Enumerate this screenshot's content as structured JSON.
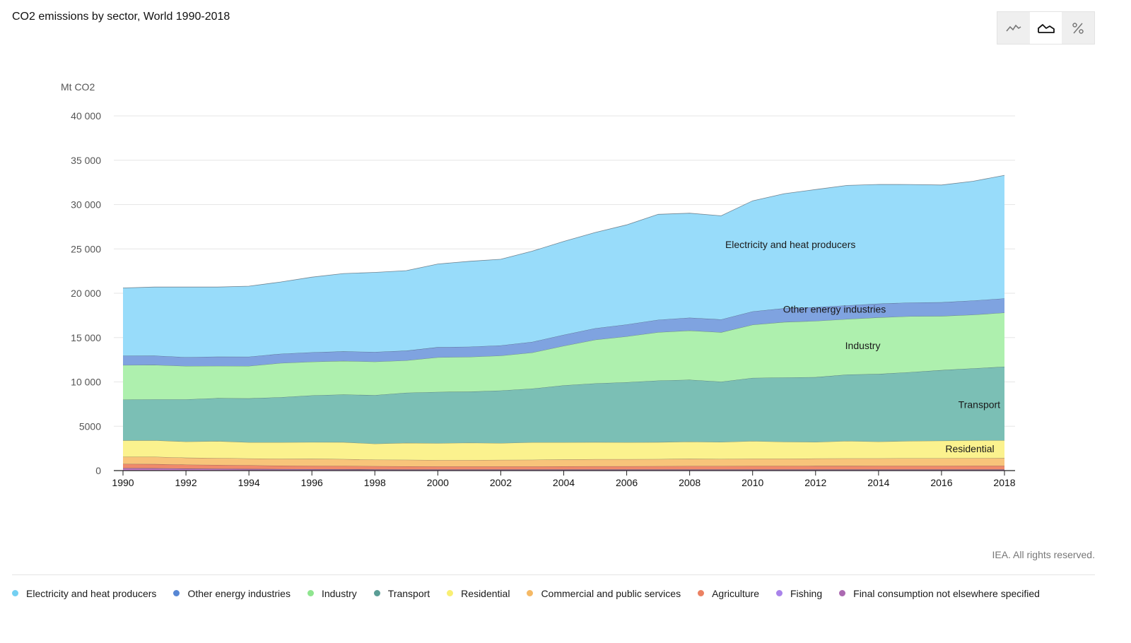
{
  "title": "CO2 emissions by sector, World 1990-2018",
  "toolbar": {
    "buttons": [
      {
        "name": "line-chart-button",
        "icon": "line-chart-icon",
        "active": false
      },
      {
        "name": "area-chart-button",
        "icon": "area-chart-icon",
        "active": true
      },
      {
        "name": "percent-button",
        "icon": "percent-icon",
        "active": false
      }
    ]
  },
  "credit": "IEA. All rights reserved.",
  "chart_data": {
    "type": "area",
    "stacked": true,
    "ylabel": "Mt CO2",
    "ylim": [
      0,
      40000
    ],
    "yticks": [
      0,
      5000,
      10000,
      15000,
      20000,
      25000,
      30000,
      35000,
      40000
    ],
    "ytick_labels": [
      "0",
      "5000",
      "10 000",
      "15 000",
      "20 000",
      "25 000",
      "30 000",
      "35 000",
      "40 000"
    ],
    "grid": true,
    "x": [
      1990,
      1991,
      1992,
      1993,
      1994,
      1995,
      1996,
      1997,
      1998,
      1999,
      2000,
      2001,
      2002,
      2003,
      2004,
      2005,
      2006,
      2007,
      2008,
      2009,
      2010,
      2011,
      2012,
      2013,
      2014,
      2015,
      2016,
      2017,
      2018
    ],
    "xticks": [
      1990,
      1992,
      1994,
      1996,
      1998,
      2000,
      2002,
      2004,
      2006,
      2008,
      2010,
      2012,
      2014,
      2016,
      2018
    ],
    "series": [
      {
        "name": "Final consumption not elsewhere specified",
        "color": "#c77dc7",
        "values": [
          250,
          240,
          200,
          180,
          160,
          140,
          130,
          120,
          110,
          100,
          100,
          100,
          100,
          100,
          100,
          100,
          100,
          100,
          100,
          100,
          100,
          100,
          100,
          100,
          100,
          100,
          100,
          100,
          100
        ]
      },
      {
        "name": "Fishing",
        "color": "#a98bf0",
        "values": [
          30,
          30,
          30,
          30,
          30,
          30,
          30,
          30,
          30,
          30,
          30,
          30,
          30,
          30,
          30,
          30,
          30,
          30,
          30,
          30,
          30,
          30,
          30,
          30,
          30,
          30,
          30,
          30,
          30
        ]
      },
      {
        "name": "Agriculture",
        "color": "#f08a6a",
        "values": [
          470,
          460,
          440,
          430,
          410,
          390,
          380,
          370,
          360,
          350,
          340,
          340,
          340,
          340,
          350,
          360,
          360,
          370,
          380,
          380,
          390,
          390,
          400,
          400,
          410,
          410,
          410,
          420,
          420
        ]
      },
      {
        "name": "Commercial and public services",
        "color": "#f8c47a",
        "values": [
          800,
          820,
          780,
          780,
          760,
          780,
          790,
          780,
          730,
          740,
          720,
          720,
          730,
          750,
          770,
          790,
          790,
          800,
          820,
          800,
          830,
          830,
          830,
          850,
          840,
          850,
          850,
          850,
          860
        ]
      },
      {
        "name": "Residential",
        "color": "#fbf28e",
        "values": [
          1850,
          1860,
          1820,
          1900,
          1830,
          1850,
          1880,
          1900,
          1800,
          1900,
          1900,
          1950,
          1900,
          1970,
          1940,
          1920,
          1910,
          1900,
          1930,
          1910,
          1980,
          1900,
          1860,
          1960,
          1890,
          1950,
          1980,
          2000,
          2000
        ]
      },
      {
        "name": "Transport",
        "color": "#7bbfb5",
        "values": [
          4600,
          4620,
          4760,
          4850,
          4950,
          5080,
          5270,
          5370,
          5480,
          5650,
          5780,
          5760,
          5930,
          6050,
          6420,
          6630,
          6770,
          6950,
          6980,
          6800,
          7120,
          7250,
          7310,
          7490,
          7620,
          7760,
          7960,
          8120,
          8300
        ]
      },
      {
        "name": "Industry",
        "color": "#aef0ae",
        "values": [
          3900,
          3880,
          3760,
          3630,
          3650,
          3850,
          3790,
          3800,
          3770,
          3650,
          3900,
          3920,
          3930,
          4070,
          4450,
          4920,
          5170,
          5450,
          5550,
          5570,
          6000,
          6250,
          6350,
          6250,
          6380,
          6300,
          6100,
          6050,
          6100
        ]
      },
      {
        "name": "Other energy industries",
        "color": "#7fa3e0",
        "values": [
          1050,
          1050,
          1000,
          1050,
          1050,
          1050,
          1070,
          1070,
          1100,
          1100,
          1150,
          1150,
          1150,
          1200,
          1250,
          1300,
          1350,
          1400,
          1450,
          1450,
          1500,
          1550,
          1550,
          1550,
          1550,
          1550,
          1550,
          1600,
          1600
        ]
      },
      {
        "name": "Electricity and heat producers",
        "color": "#98dcfa",
        "values": [
          7650,
          7740,
          7910,
          7850,
          7960,
          8100,
          8480,
          8780,
          8970,
          9030,
          9380,
          9630,
          9720,
          10240,
          10540,
          10800,
          11230,
          11900,
          11790,
          11690,
          12470,
          12930,
          13270,
          13530,
          13450,
          13310,
          13230,
          13460,
          13890
        ]
      }
    ],
    "legend_order": [
      "Electricity and heat producers",
      "Other energy industries",
      "Industry",
      "Transport",
      "Residential",
      "Commercial and public services",
      "Agriculture",
      "Fishing",
      "Final consumption not elsewhere specified"
    ],
    "legend_colors": [
      "#5ac8f0",
      "#3a72cc",
      "#7be07b",
      "#3d8c83",
      "#f8ec5a",
      "#f3ad4a",
      "#e76b47",
      "#9a6de6",
      "#9c4fa3"
    ],
    "legend_position": "bottom",
    "annotations": [
      {
        "text": "Electricity and heat producers",
        "x": 2011.2,
        "y": 25500
      },
      {
        "text": "Other energy industries",
        "x": 2012.6,
        "y": 18200
      },
      {
        "text": "Industry",
        "x": 2013.5,
        "y": 14100
      },
      {
        "text": "Transport",
        "x": 2017.2,
        "y": 7450
      },
      {
        "text": "Residential",
        "x": 2016.9,
        "y": 2480
      }
    ]
  }
}
